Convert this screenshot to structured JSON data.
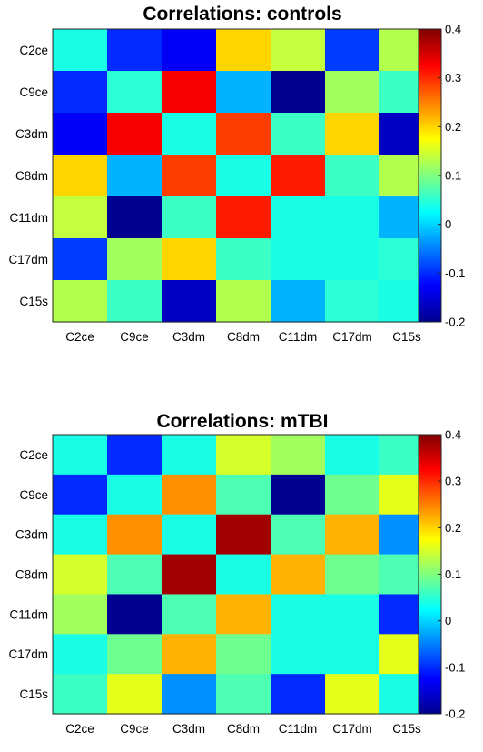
{
  "chart_data": [
    {
      "type": "heatmap",
      "title": "Correlations: controls",
      "labels": [
        "C2ce",
        "C9ce",
        "C3dm",
        "C8dm",
        "C11dm",
        "C17dm",
        "C15s"
      ],
      "matrix": [
        [
          0.04,
          -0.1,
          -0.13,
          0.2,
          0.14,
          -0.09,
          0.13
        ],
        [
          -0.1,
          0.05,
          0.33,
          -0.02,
          -0.19,
          0.12,
          0.06
        ],
        [
          -0.13,
          0.33,
          0.04,
          0.29,
          0.06,
          0.2,
          -0.16
        ],
        [
          0.2,
          -0.02,
          0.29,
          0.04,
          0.31,
          0.06,
          0.13
        ],
        [
          0.14,
          -0.19,
          0.06,
          0.31,
          0.04,
          0.04,
          -0.02
        ],
        [
          -0.09,
          0.12,
          0.2,
          0.06,
          0.04,
          0.04,
          0.05
        ],
        [
          0.13,
          0.06,
          -0.16,
          0.13,
          -0.02,
          0.05,
          0.04
        ]
      ],
      "colorbar": {
        "min": -0.2,
        "max": 0.4,
        "ticks": [
          "0.4",
          "0.3",
          "0.2",
          "0.1",
          "0",
          "-0.1",
          "-0.2"
        ]
      },
      "colormap": "jet",
      "grid": false
    },
    {
      "type": "heatmap",
      "title": "Correlations: mTBI",
      "labels": [
        "C2ce",
        "C9ce",
        "C3dm",
        "C8dm",
        "C11dm",
        "C17dm",
        "C15s"
      ],
      "matrix": [
        [
          0.04,
          -0.1,
          0.04,
          0.15,
          0.12,
          0.04,
          0.06
        ],
        [
          -0.1,
          0.04,
          0.24,
          0.07,
          -0.19,
          0.09,
          0.16
        ],
        [
          0.04,
          0.24,
          0.04,
          0.38,
          0.07,
          0.22,
          -0.04
        ],
        [
          0.15,
          0.07,
          0.38,
          0.04,
          0.22,
          0.09,
          0.07
        ],
        [
          0.12,
          -0.19,
          0.07,
          0.22,
          0.04,
          0.04,
          -0.1
        ],
        [
          0.04,
          0.09,
          0.22,
          0.09,
          0.04,
          0.04,
          0.16
        ],
        [
          0.06,
          0.16,
          -0.04,
          0.07,
          -0.1,
          0.16,
          0.04
        ]
      ],
      "colorbar": {
        "min": -0.2,
        "max": 0.4,
        "ticks": [
          "0.4",
          "0.3",
          "0.2",
          "0.1",
          "0",
          "-0.1",
          "-0.2"
        ]
      },
      "colormap": "jet",
      "grid": false
    }
  ]
}
